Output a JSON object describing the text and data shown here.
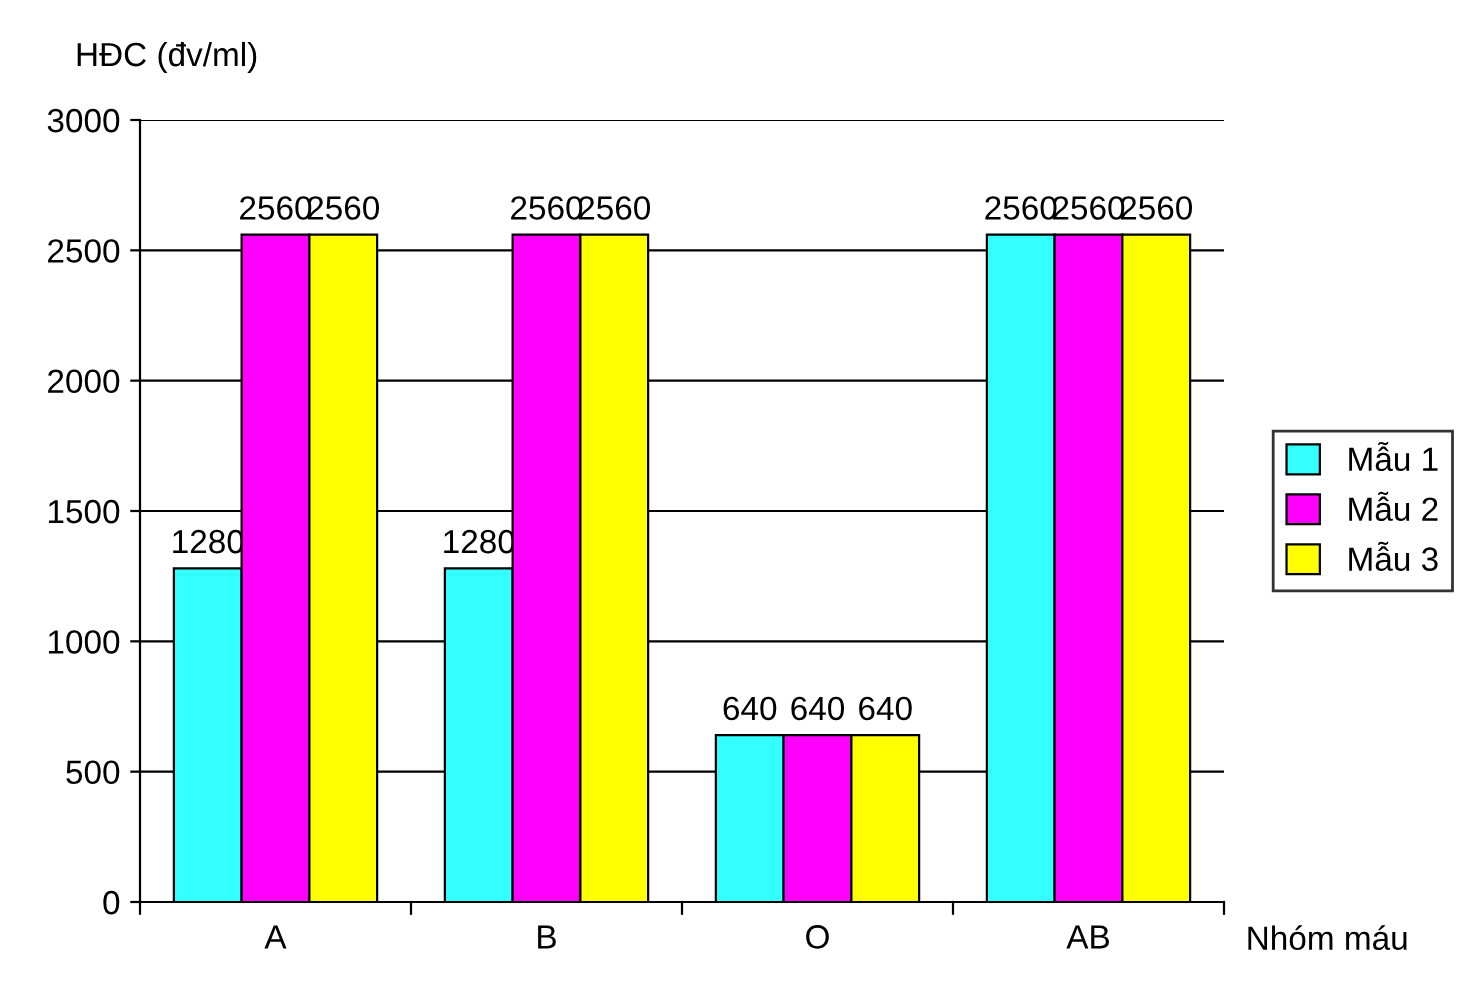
{
  "chart_data": {
    "type": "bar",
    "xlabel": "Nhóm máu",
    "ylabel": "HĐC (đv/ml)",
    "categories": [
      "A",
      "B",
      "O",
      "AB"
    ],
    "series": [
      {
        "name": "Mẫu 1",
        "color": "#33ffff",
        "values": [
          1280,
          1280,
          640,
          2560
        ]
      },
      {
        "name": "Mẫu 2",
        "color": "#ff00ff",
        "values": [
          2560,
          2560,
          640,
          2560
        ]
      },
      {
        "name": "Mẫu 3",
        "color": "#ffff00",
        "values": [
          2560,
          2560,
          640,
          2560
        ]
      }
    ],
    "ylim": [
      0,
      3000
    ],
    "yticks": [
      0,
      500,
      1000,
      1500,
      2000,
      2500,
      3000
    ],
    "grid": "y",
    "legend": "right",
    "data_labels": true
  }
}
